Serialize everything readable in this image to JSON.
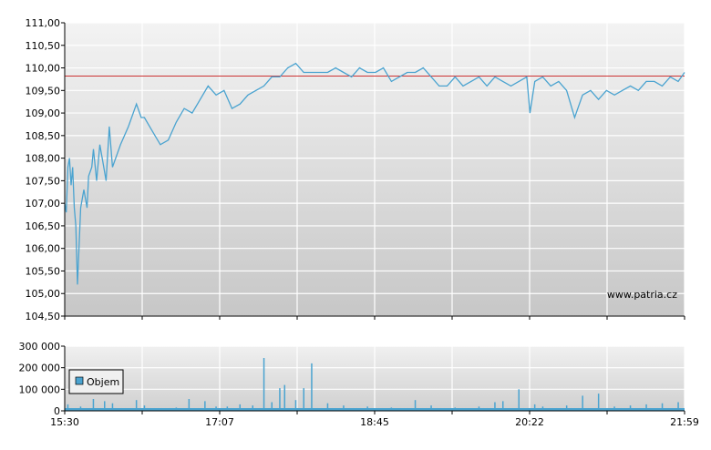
{
  "chart_data": [
    {
      "type": "line",
      "title": "",
      "xlabel": "",
      "ylabel": "",
      "ylim": [
        104.5,
        111.0
      ],
      "y_ticks": [
        "111,00",
        "110,50",
        "110,00",
        "109,50",
        "109,00",
        "108,50",
        "108,00",
        "107,50",
        "107,00",
        "106,50",
        "106,00",
        "105,50",
        "105,00",
        "104,50"
      ],
      "x_ticks": [
        "15:30",
        "17:07",
        "18:45",
        "20:22",
        "21:59"
      ],
      "reference_line": 109.82,
      "series": [
        {
          "color": "#4aa3d0",
          "x": [
            "15:30",
            "15:31",
            "15:32",
            "15:33",
            "15:34",
            "15:35",
            "15:36",
            "15:37",
            "15:38",
            "15:40",
            "15:42",
            "15:44",
            "15:45",
            "15:47",
            "15:48",
            "15:50",
            "15:52",
            "15:54",
            "15:56",
            "15:58",
            "16:00",
            "16:05",
            "16:10",
            "16:15",
            "16:18",
            "16:20",
            "16:25",
            "16:30",
            "16:35",
            "16:40",
            "16:45",
            "16:50",
            "16:55",
            "17:00",
            "17:05",
            "17:10",
            "17:15",
            "17:20",
            "17:25",
            "17:30",
            "17:35",
            "17:40",
            "17:45",
            "17:50",
            "17:55",
            "18:00",
            "18:05",
            "18:10",
            "18:15",
            "18:20",
            "18:25",
            "18:30",
            "18:35",
            "18:40",
            "18:45",
            "18:50",
            "18:55",
            "19:00",
            "19:05",
            "19:10",
            "19:15",
            "19:20",
            "19:25",
            "19:30",
            "19:35",
            "19:40",
            "19:45",
            "19:50",
            "19:55",
            "20:00",
            "20:05",
            "20:10",
            "20:15",
            "20:20",
            "20:22",
            "20:25",
            "20:30",
            "20:35",
            "20:40",
            "20:45",
            "20:50",
            "20:55",
            "21:00",
            "21:05",
            "21:10",
            "21:15",
            "21:20",
            "21:25",
            "21:30",
            "21:35",
            "21:40",
            "21:45",
            "21:50",
            "21:55",
            "21:59"
          ],
          "values": [
            107.0,
            106.8,
            107.8,
            108.0,
            107.4,
            107.8,
            106.9,
            106.5,
            105.2,
            106.9,
            107.3,
            106.9,
            107.6,
            107.8,
            108.2,
            107.5,
            108.3,
            107.9,
            107.5,
            108.7,
            107.8,
            108.3,
            108.7,
            109.2,
            108.9,
            108.9,
            108.6,
            108.3,
            108.4,
            108.8,
            109.1,
            109.0,
            109.3,
            109.6,
            109.4,
            109.5,
            109.1,
            109.2,
            109.4,
            109.5,
            109.6,
            109.8,
            109.8,
            110.0,
            110.1,
            109.9,
            109.9,
            109.9,
            109.9,
            110.0,
            109.9,
            109.8,
            110.0,
            109.9,
            109.9,
            110.0,
            109.7,
            109.8,
            109.9,
            109.9,
            110.0,
            109.8,
            109.6,
            109.6,
            109.8,
            109.6,
            109.7,
            109.8,
            109.6,
            109.8,
            109.7,
            109.6,
            109.7,
            109.8,
            109.0,
            109.7,
            109.8,
            109.6,
            109.7,
            109.5,
            108.9,
            109.4,
            109.5,
            109.3,
            109.5,
            109.4,
            109.5,
            109.6,
            109.5,
            109.7,
            109.7,
            109.6,
            109.8,
            109.7,
            109.9
          ]
        }
      ],
      "grid": true,
      "watermark": "www.patria.cz"
    },
    {
      "type": "bar",
      "title": "",
      "ylim": [
        0,
        300000
      ],
      "y_ticks": [
        "300 000",
        "200 000",
        "100 000",
        "0"
      ],
      "x_ticks": [
        "15:30",
        "17:07",
        "18:45",
        "20:22",
        "21:59"
      ],
      "legend": "Objem",
      "legend_position": "left",
      "series": [
        {
          "name": "Objem",
          "color": "#4aa3d0",
          "x": [
            "15:32",
            "15:40",
            "15:48",
            "15:55",
            "16:00",
            "16:15",
            "16:20",
            "16:40",
            "16:48",
            "16:58",
            "17:05",
            "17:12",
            "17:20",
            "17:28",
            "17:35",
            "17:40",
            "17:45",
            "17:48",
            "17:55",
            "18:00",
            "18:05",
            "18:15",
            "18:25",
            "18:40",
            "18:55",
            "19:10",
            "19:20",
            "19:35",
            "19:50",
            "20:00",
            "20:05",
            "20:15",
            "20:25",
            "20:30",
            "20:45",
            "20:55",
            "21:05",
            "21:15",
            "21:25",
            "21:35",
            "21:45",
            "21:55"
          ],
          "values": [
            30000,
            20000,
            55000,
            45000,
            35000,
            50000,
            25000,
            15000,
            55000,
            45000,
            20000,
            20000,
            30000,
            25000,
            245000,
            40000,
            105000,
            120000,
            50000,
            105000,
            220000,
            35000,
            25000,
            20000,
            15000,
            50000,
            25000,
            15000,
            20000,
            40000,
            45000,
            100000,
            30000,
            20000,
            25000,
            70000,
            80000,
            20000,
            25000,
            30000,
            35000,
            40000
          ]
        }
      ],
      "grid": true
    }
  ]
}
